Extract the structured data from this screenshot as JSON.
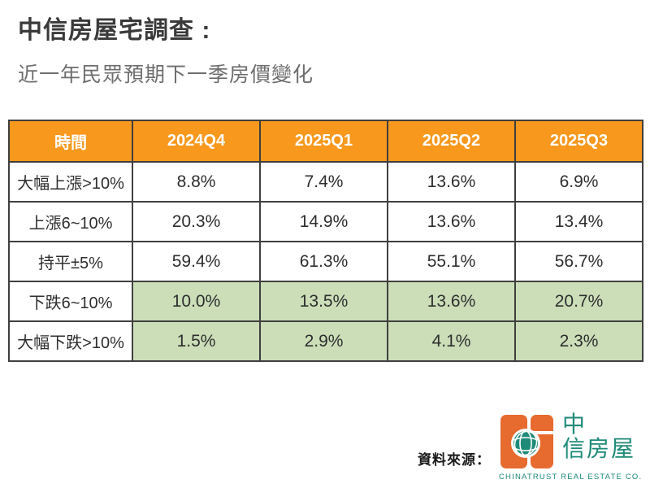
{
  "title": "中信房屋宅調查 :",
  "subtitle": "近一年民眾預期下一季房價變化",
  "table": {
    "columns": [
      "時間",
      "2024Q4",
      "2025Q1",
      "2025Q2",
      "2025Q3"
    ],
    "rows": [
      {
        "label": "大幅上漲>10%",
        "values": [
          "8.8%",
          "7.4%",
          "13.6%",
          "6.9%"
        ],
        "highlight": false
      },
      {
        "label": "上漲6~10%",
        "values": [
          "20.3%",
          "14.9%",
          "13.6%",
          "13.4%"
        ],
        "highlight": false
      },
      {
        "label": "持平±5%",
        "values": [
          "59.4%",
          "61.3%",
          "55.1%",
          "56.7%"
        ],
        "highlight": false
      },
      {
        "label": "下跌6~10%",
        "values": [
          "10.0%",
          "13.5%",
          "13.6%",
          "20.7%"
        ],
        "highlight": true
      },
      {
        "label": "大幅下跌>10%",
        "values": [
          "1.5%",
          "2.9%",
          "4.1%",
          "2.3%"
        ],
        "highlight": true
      }
    ]
  },
  "footer": {
    "source_label": "資料來源：",
    "logo": {
      "zh_line1": "中",
      "zh_line2": "信房屋",
      "en": "CHINATRUST REAL ESTATE CO."
    }
  },
  "colors": {
    "header_bg": "#F8981D",
    "highlight_bg": "#CBDEB8",
    "table_border": "#3F3F3F",
    "logo_orange": "#E76A2E",
    "logo_teal": "#1E8A78"
  },
  "chart_data": {
    "type": "table",
    "title": "中信房屋宅調查：近一年民眾預期下一季房價變化",
    "categories": [
      "2024Q4",
      "2025Q1",
      "2025Q2",
      "2025Q3"
    ],
    "series": [
      {
        "name": "大幅上漲>10%",
        "values": [
          8.8,
          7.4,
          13.6,
          6.9
        ]
      },
      {
        "name": "上漲6~10%",
        "values": [
          20.3,
          14.9,
          13.6,
          13.4
        ]
      },
      {
        "name": "持平±5%",
        "values": [
          59.4,
          61.3,
          55.1,
          56.7
        ]
      },
      {
        "name": "下跌6~10%",
        "values": [
          10.0,
          13.5,
          13.6,
          20.7
        ]
      },
      {
        "name": "大幅下跌>10%",
        "values": [
          1.5,
          2.9,
          4.1,
          2.3
        ]
      }
    ],
    "unit": "%",
    "highlighted_rows": [
      "下跌6~10%",
      "大幅下跌>10%"
    ],
    "source": "中信房屋 CHINATRUST REAL ESTATE CO."
  }
}
